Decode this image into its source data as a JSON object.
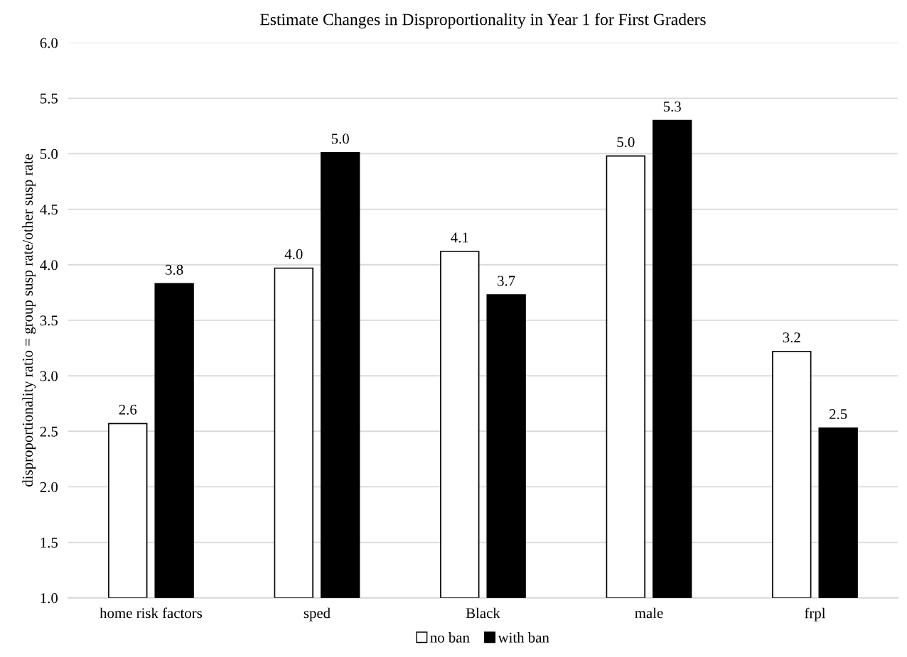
{
  "chart_data": {
    "type": "bar",
    "title": "Estimate Changes in Disproportionality in Year 1 for First Graders",
    "ylabel": "disproportionality ratio = group susp rate/other susp rate",
    "categories": [
      "home risk factors",
      "sped",
      "Black",
      "male",
      "frpl"
    ],
    "series": [
      {
        "name": "no ban",
        "color": "#ffffff",
        "values": [
          2.57,
          3.97,
          4.12,
          4.98,
          3.22
        ],
        "value_labels": [
          "2.6",
          "4.0",
          "4.1",
          "5.0",
          "3.2"
        ]
      },
      {
        "name": "with ban",
        "color": "#000000",
        "values": [
          3.83,
          5.01,
          3.73,
          5.3,
          2.53
        ],
        "value_labels": [
          "3.8",
          "5.0",
          "3.7",
          "5.3",
          "2.5"
        ]
      }
    ],
    "ylim": [
      1.0,
      6.0
    ],
    "yticks": [
      {
        "value": 1.0,
        "label": "1.0"
      },
      {
        "value": 1.5,
        "label": "1.5"
      },
      {
        "value": 2.0,
        "label": "2.0"
      },
      {
        "value": 2.5,
        "label": "2.5"
      },
      {
        "value": 3.0,
        "label": "3.0"
      },
      {
        "value": 3.5,
        "label": "3.5"
      },
      {
        "value": 4.0,
        "label": "4.0"
      },
      {
        "value": 4.5,
        "label": "4.5"
      },
      {
        "value": 5.0,
        "label": "5.0"
      },
      {
        "value": 5.5,
        "label": "5.5"
      },
      {
        "value": 6.0,
        "label": "6.0"
      }
    ],
    "grid": "y",
    "legend": "bottom"
  }
}
